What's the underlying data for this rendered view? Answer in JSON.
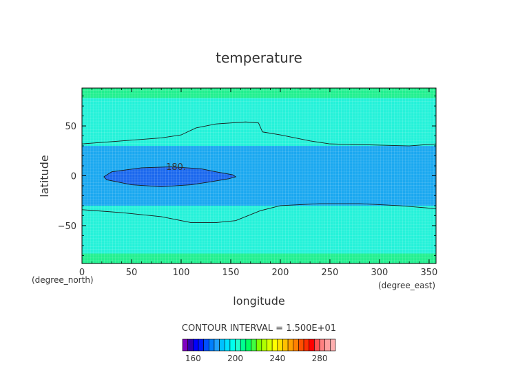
{
  "chart_data": {
    "type": "heatmap",
    "title": "temperature",
    "xlabel": "longitude",
    "ylabel": "latitude",
    "x_unit": "(degree_east)",
    "y_unit": "(degree_north)",
    "xlim": [
      0,
      357
    ],
    "ylim": [
      -88,
      88
    ],
    "x_ticks": [
      0,
      50,
      100,
      150,
      200,
      250,
      300,
      350
    ],
    "y_ticks": [
      -50,
      0,
      50
    ],
    "contour_interval_text": "CONTOUR INTERVAL = 1.500E+01",
    "contour_label": "180.",
    "colorbar": {
      "levels": [
        150,
        155,
        160,
        165,
        170,
        175,
        180,
        185,
        190,
        195,
        200,
        205,
        210,
        215,
        220,
        225,
        230,
        235,
        240,
        245,
        250,
        255,
        260,
        265,
        270,
        275,
        280,
        285,
        290,
        295
      ],
      "colors": [
        "#8000c0",
        "#3000b0",
        "#0000ff",
        "#0018ff",
        "#0050ff",
        "#0080ff",
        "#20a0ff",
        "#00c0ff",
        "#00e0ff",
        "#00ffee",
        "#20ffd0",
        "#00ff90",
        "#00ff60",
        "#40ff40",
        "#80ff00",
        "#b0ff00",
        "#d8ff00",
        "#ffff00",
        "#ffe000",
        "#ffc000",
        "#ffa000",
        "#ff8000",
        "#ff5000",
        "#ff3000",
        "#ff0000",
        "#ff5050",
        "#ff8080",
        "#ffa0a0",
        "#ffb0b0"
      ],
      "tick_labels": [
        "160",
        "200",
        "240",
        "280"
      ],
      "tick_values": [
        160,
        200,
        240,
        280
      ]
    },
    "bands": [
      {
        "lat_from": 78,
        "lat_to": 88,
        "value": 210,
        "color": "#21f08f"
      },
      {
        "lat_from": -88,
        "lat_to": -78,
        "value": 210,
        "color": "#21f08f"
      },
      {
        "lat_from": -78,
        "lat_to": 78,
        "value": 200,
        "color": "#24f2d9"
      },
      {
        "lat_from": -30,
        "lat_to": 30,
        "value": 190,
        "color": "#1aa8f0"
      },
      {
        "lat_from": -8,
        "lat_to": 8,
        "value": 180,
        "color": "#1a68ee"
      }
    ],
    "contours": [
      {
        "name": "north-195",
        "points": [
          [
            0,
            32
          ],
          [
            40,
            35
          ],
          [
            80,
            38
          ],
          [
            100,
            41
          ],
          [
            115,
            48
          ],
          [
            135,
            52
          ],
          [
            165,
            54
          ],
          [
            178,
            53
          ],
          [
            182,
            44
          ],
          [
            200,
            41
          ],
          [
            230,
            35
          ],
          [
            250,
            32
          ],
          [
            290,
            31
          ],
          [
            330,
            30
          ],
          [
            357,
            32
          ]
        ]
      },
      {
        "name": "south-195",
        "points": [
          [
            0,
            -34
          ],
          [
            40,
            -37
          ],
          [
            80,
            -41
          ],
          [
            110,
            -47
          ],
          [
            135,
            -47
          ],
          [
            155,
            -45
          ],
          [
            180,
            -35
          ],
          [
            200,
            -30
          ],
          [
            240,
            -28
          ],
          [
            280,
            -28
          ],
          [
            320,
            -30
          ],
          [
            357,
            -33
          ]
        ]
      },
      {
        "name": "center-180",
        "points": [
          [
            22,
            -1
          ],
          [
            30,
            4
          ],
          [
            60,
            8
          ],
          [
            90,
            9
          ],
          [
            120,
            7
          ],
          [
            135,
            4
          ],
          [
            152,
            1
          ],
          [
            155,
            -1
          ],
          [
            148,
            -3
          ],
          [
            130,
            -6
          ],
          [
            110,
            -9
          ],
          [
            80,
            -11
          ],
          [
            50,
            -9
          ],
          [
            25,
            -4
          ],
          [
            22,
            -1
          ]
        ]
      }
    ]
  }
}
